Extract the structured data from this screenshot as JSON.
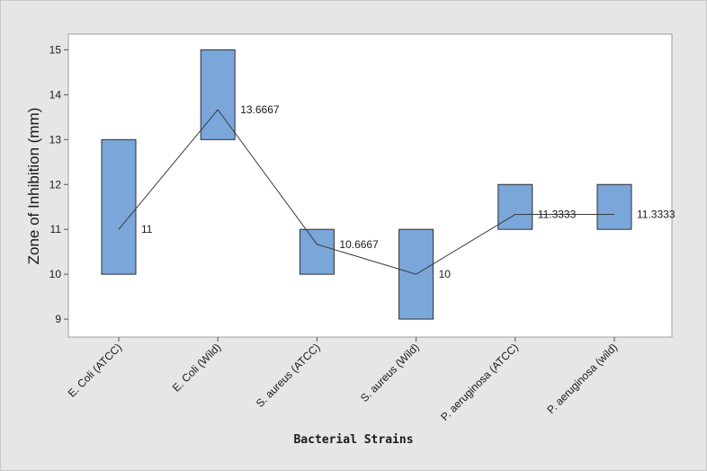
{
  "chart_data": {
    "type": "interval",
    "xlabel": "Bacterial Strains",
    "ylabel": "Zone of Inhibition (mm)",
    "ylim": [
      8.6,
      15.35
    ],
    "yticks": [
      9,
      10,
      11,
      12,
      13,
      14,
      15
    ],
    "grid": false,
    "categories": [
      "E. Coli (ATCC)",
      "E. Coli (Wild)",
      "S. aureus (ATCC)",
      "S. aureus (Wild)",
      "P. aeruginosa (ATCC)",
      "P. aeruginosa (wild)"
    ],
    "low": [
      10,
      13,
      10,
      9,
      11,
      11
    ],
    "high": [
      13,
      15,
      11,
      11,
      12,
      12
    ],
    "mean": [
      11,
      13.6667,
      10.6667,
      10,
      11.3333,
      11.3333
    ],
    "mean_labels": [
      "11",
      "13.6667",
      "10.6667",
      "10",
      "11.3333",
      "11.3333"
    ],
    "box_color": "#7aa6da",
    "box_edge_color": "#2f2f2f",
    "line_color": "#3a3a3a",
    "panel_bg": "#e6e6e6",
    "plot_bg": "#ffffff"
  }
}
